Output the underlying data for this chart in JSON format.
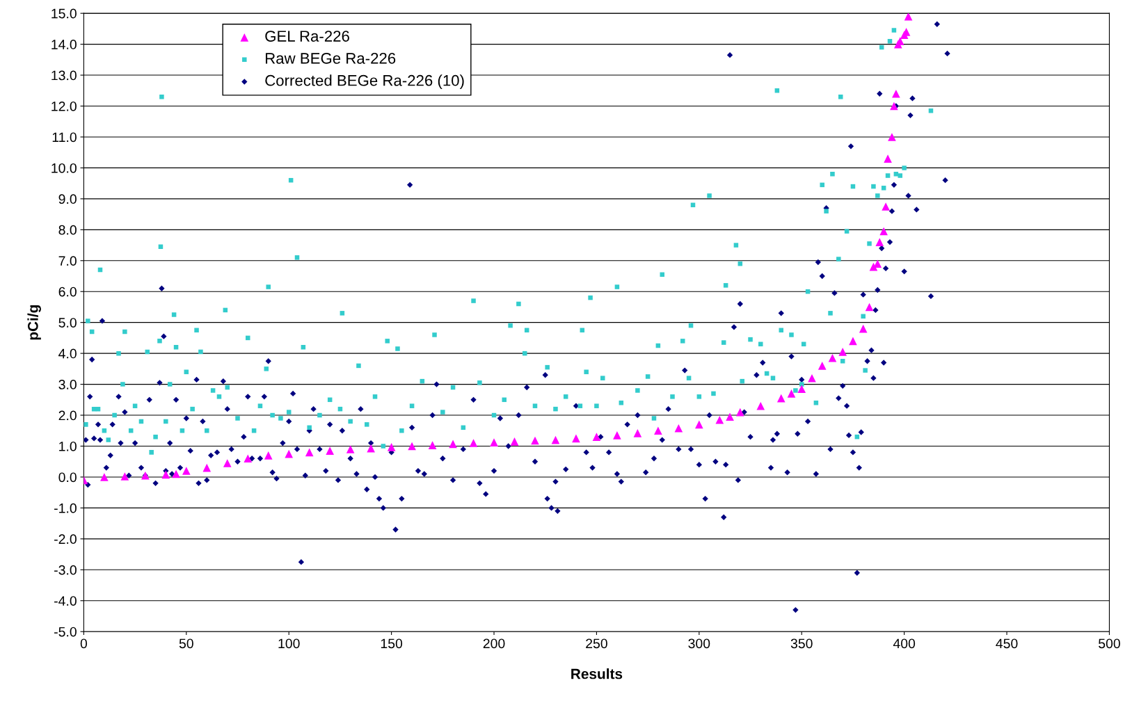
{
  "chart_data": {
    "type": "scatter",
    "xlabel": "Results",
    "ylabel": "pCi/g",
    "xlim": [
      0,
      500
    ],
    "xticks": [
      0,
      50,
      100,
      150,
      200,
      250,
      300,
      350,
      400,
      450,
      500
    ],
    "ylim": [
      -5,
      15
    ],
    "yticks": [
      {
        "value": -5,
        "label": "-5.0"
      },
      {
        "value": -4,
        "label": "-4.0"
      },
      {
        "value": -3,
        "label": "-3.0"
      },
      {
        "value": -2,
        "label": "-2.0"
      },
      {
        "value": -1,
        "label": "-1.0"
      },
      {
        "value": 0,
        "label": "0.0"
      },
      {
        "value": 1,
        "label": "1.0"
      },
      {
        "value": 2,
        "label": "2.0"
      },
      {
        "value": 3,
        "label": "3.0"
      },
      {
        "value": 4,
        "label": "4.0"
      },
      {
        "value": 5,
        "label": "5.0"
      },
      {
        "value": 6,
        "label": "6.0"
      },
      {
        "value": 7,
        "label": "7.0"
      },
      {
        "value": 8,
        "label": "8.0"
      },
      {
        "value": 9,
        "label": "9.0"
      },
      {
        "value": 10,
        "label": "10.0"
      },
      {
        "value": 11,
        "label": "11.0"
      },
      {
        "value": 12,
        "label": "12.0"
      },
      {
        "value": 13,
        "label": "13.0"
      },
      {
        "value": 14,
        "label": "14.0"
      },
      {
        "value": 15,
        "label": "15.0"
      }
    ],
    "grid": "y",
    "legend": "top left",
    "series": [
      {
        "name": "GEL Ra-226",
        "color": "#ff00ff",
        "marker": "triangle",
        "x": [
          0,
          10,
          20,
          30,
          40,
          45,
          50,
          60,
          70,
          80,
          90,
          100,
          110,
          120,
          130,
          140,
          150,
          160,
          170,
          180,
          190,
          200,
          210,
          220,
          230,
          240,
          250,
          260,
          270,
          280,
          290,
          300,
          310,
          315,
          320,
          330,
          340,
          345,
          350,
          355,
          360,
          365,
          370,
          375,
          380,
          383,
          385,
          387,
          388,
          390,
          391,
          392,
          394,
          395,
          396,
          397,
          398,
          400,
          401,
          402
        ],
        "values": [
          -0.1,
          0.0,
          0.02,
          0.05,
          0.08,
          0.1,
          0.2,
          0.3,
          0.45,
          0.6,
          0.7,
          0.75,
          0.8,
          0.85,
          0.9,
          0.93,
          0.97,
          1.0,
          1.03,
          1.07,
          1.1,
          1.12,
          1.15,
          1.18,
          1.2,
          1.25,
          1.3,
          1.35,
          1.42,
          1.5,
          1.58,
          1.7,
          1.85,
          1.95,
          2.1,
          2.3,
          2.55,
          2.7,
          2.85,
          3.2,
          3.6,
          3.85,
          4.05,
          4.4,
          4.8,
          5.5,
          6.8,
          6.9,
          7.6,
          7.95,
          8.75,
          10.3,
          11.0,
          12.0,
          12.4,
          14.0,
          14.1,
          14.3,
          14.4,
          14.9
        ]
      },
      {
        "name": "Raw BEGe Ra-226",
        "color": "#33cccc",
        "marker": "square",
        "x": [
          1,
          2,
          4,
          5,
          7,
          8,
          10,
          12,
          15,
          17,
          19,
          20,
          23,
          25,
          28,
          31,
          33,
          35,
          37,
          37.5,
          38,
          40,
          42,
          44,
          45,
          48,
          50,
          53,
          55,
          57,
          60,
          63,
          66,
          69,
          70,
          75,
          80,
          83,
          86,
          89,
          90,
          92,
          96,
          100,
          101,
          104,
          107,
          110,
          115,
          120,
          125,
          126,
          130,
          134,
          138,
          142,
          146,
          148,
          153,
          155,
          160,
          165,
          171,
          175,
          180,
          185,
          190,
          193,
          200,
          205,
          208,
          212,
          215,
          216,
          220,
          226,
          230,
          235,
          242,
          243,
          245,
          247,
          250,
          253,
          260,
          262,
          270,
          275,
          278,
          280,
          282,
          287,
          292,
          295,
          296,
          297,
          300,
          305,
          307,
          312,
          313,
          318,
          320,
          321,
          325,
          330,
          333,
          336,
          338,
          340,
          345,
          347,
          350,
          351,
          353,
          357,
          360,
          362,
          364,
          365,
          368,
          369,
          370,
          372,
          375,
          377,
          380,
          381,
          383,
          385,
          387,
          389,
          390,
          392,
          393,
          395,
          396,
          398,
          400,
          413
        ],
        "values": [
          1.7,
          5.05,
          4.7,
          2.2,
          2.2,
          6.7,
          1.5,
          1.2,
          2.0,
          4.0,
          3.0,
          4.7,
          1.5,
          2.3,
          1.8,
          4.05,
          0.8,
          1.3,
          4.4,
          7.45,
          12.3,
          1.8,
          3.0,
          5.25,
          4.2,
          1.5,
          3.4,
          2.2,
          4.75,
          4.05,
          1.5,
          2.8,
          2.6,
          5.4,
          2.9,
          1.9,
          4.5,
          1.5,
          2.3,
          3.5,
          6.15,
          2.0,
          1.9,
          2.1,
          9.6,
          7.1,
          4.2,
          1.6,
          2.0,
          2.5,
          2.2,
          5.3,
          1.8,
          3.6,
          1.7,
          2.6,
          1.0,
          4.4,
          4.15,
          1.5,
          2.3,
          3.1,
          4.6,
          2.1,
          2.9,
          1.6,
          5.7,
          3.05,
          2.0,
          2.5,
          4.9,
          5.6,
          4.0,
          4.75,
          2.3,
          3.55,
          2.2,
          2.6,
          2.3,
          4.75,
          3.4,
          5.8,
          2.3,
          3.2,
          6.15,
          2.4,
          2.8,
          3.25,
          1.9,
          4.25,
          6.55,
          2.6,
          4.4,
          3.2,
          4.9,
          8.8,
          2.6,
          9.1,
          2.7,
          4.35,
          6.2,
          7.5,
          6.9,
          3.1,
          4.45,
          4.3,
          3.35,
          3.2,
          12.5,
          4.75,
          4.6,
          2.8,
          3.0,
          4.3,
          6.0,
          2.4,
          9.45,
          8.6,
          5.3,
          9.8,
          7.05,
          12.3,
          3.75,
          7.95,
          9.4,
          1.3,
          5.2,
          3.45,
          7.55,
          9.4,
          9.1,
          13.9,
          9.35,
          9.75,
          14.1,
          14.45,
          9.8,
          9.75,
          10.0,
          11.85
        ]
      },
      {
        "name": "Corrected BEGe Ra-226 (10)",
        "color": "#000080",
        "marker": "diamond",
        "x": [
          1,
          2,
          3,
          4,
          5,
          7,
          8,
          9,
          11,
          13,
          14,
          17,
          18,
          20,
          22,
          25,
          28,
          30,
          32,
          35,
          37,
          38,
          39,
          40,
          42,
          43,
          45,
          47,
          50,
          52,
          55,
          56,
          58,
          60,
          62,
          65,
          68,
          70,
          72,
          75,
          78,
          80,
          82,
          86,
          88,
          90,
          92,
          94,
          97,
          100,
          102,
          104,
          106,
          108,
          110,
          112,
          115,
          118,
          120,
          124,
          126,
          130,
          133,
          135,
          138,
          140,
          142,
          144,
          146,
          150,
          152,
          155,
          159,
          160,
          163,
          166,
          170,
          172,
          175,
          180,
          185,
          190,
          193,
          196,
          200,
          203,
          207,
          212,
          216,
          220,
          225,
          226,
          228,
          230,
          231,
          235,
          240,
          245,
          248,
          252,
          256,
          260,
          262,
          265,
          270,
          274,
          278,
          282,
          285,
          290,
          293,
          296,
          300,
          303,
          305,
          308,
          312,
          313,
          315,
          317,
          319,
          320,
          322,
          325,
          328,
          331,
          335,
          336,
          338,
          340,
          343,
          345,
          347,
          348,
          350,
          353,
          357,
          358,
          360,
          362,
          364,
          366,
          368,
          370,
          372,
          373,
          374,
          375,
          377,
          378,
          379,
          380,
          382,
          384,
          385,
          386,
          387,
          388,
          389,
          390,
          391,
          393,
          394,
          395,
          396,
          400,
          402,
          403,
          404,
          406,
          413,
          416,
          420,
          421
        ],
        "values": [
          1.2,
          -0.25,
          2.6,
          3.8,
          1.25,
          1.7,
          1.2,
          5.05,
          0.3,
          0.7,
          1.7,
          2.6,
          1.1,
          2.1,
          0.05,
          1.1,
          0.3,
          0.05,
          2.5,
          -0.2,
          3.05,
          6.1,
          4.55,
          0.2,
          1.1,
          0.1,
          2.5,
          0.3,
          1.9,
          0.85,
          3.15,
          -0.2,
          1.8,
          -0.1,
          0.7,
          0.8,
          3.1,
          2.2,
          0.9,
          0.5,
          1.3,
          2.6,
          0.6,
          0.6,
          2.6,
          3.75,
          0.15,
          -0.05,
          1.1,
          1.8,
          2.7,
          0.9,
          -2.75,
          0.05,
          1.5,
          2.2,
          0.9,
          0.2,
          1.7,
          -0.1,
          1.5,
          0.6,
          0.1,
          2.2,
          -0.4,
          1.1,
          0.0,
          -0.7,
          -1.0,
          0.8,
          -1.7,
          -0.7,
          9.45,
          1.6,
          0.2,
          0.1,
          2.0,
          3.0,
          0.6,
          -0.1,
          0.9,
          2.5,
          -0.2,
          -0.55,
          0.2,
          1.9,
          1.0,
          2.0,
          2.9,
          0.5,
          3.3,
          -0.7,
          -1.0,
          -0.15,
          -1.1,
          0.25,
          2.3,
          0.8,
          0.3,
          1.3,
          0.8,
          0.1,
          -0.15,
          1.7,
          2.0,
          0.15,
          0.6,
          1.2,
          2.2,
          0.9,
          3.45,
          0.9,
          0.4,
          -0.7,
          2.0,
          0.5,
          -1.3,
          0.4,
          13.65,
          4.85,
          -0.1,
          5.6,
          2.1,
          1.3,
          3.3,
          3.7,
          0.3,
          1.2,
          1.4,
          5.3,
          0.15,
          3.9,
          -4.3,
          1.4,
          3.15,
          1.8,
          0.1,
          6.95,
          6.5,
          8.7,
          0.9,
          5.95,
          2.55,
          2.95,
          2.3,
          1.35,
          10.7,
          0.8,
          -3.1,
          0.3,
          1.45,
          5.9,
          3.75,
          4.1,
          3.2,
          5.4,
          6.05,
          12.4,
          7.4,
          3.7,
          6.75,
          7.6,
          8.6,
          9.45,
          12.0,
          6.65,
          9.1,
          11.7,
          12.25,
          8.65,
          5.85,
          14.65,
          9.6,
          13.7
        ]
      }
    ]
  }
}
